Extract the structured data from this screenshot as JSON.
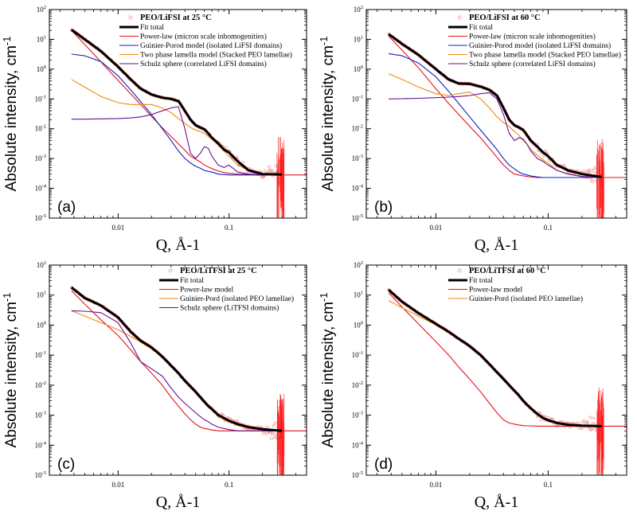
{
  "chart_data": [
    {
      "type": "line",
      "panel_label": "(a)",
      "legend_title": "PEO/LiFSI at 25 °C",
      "xlabel": "Q, Å-1",
      "ylabel": "Absolute intensity, cm-1",
      "xscale": "log",
      "yscale": "log",
      "xlim": [
        0.0024,
        0.5
      ],
      "ylim": [
        1e-05,
        100
      ],
      "xticks": [
        "0.01",
        "0.1"
      ],
      "yticks": [
        "10^2",
        "10^1",
        "10^0",
        "10^-1",
        "10^-2",
        "10^-3",
        "10^-4",
        "10^-5"
      ],
      "legend_position": "top-right",
      "x": [
        0.0038,
        0.005,
        0.007,
        0.01,
        0.013,
        0.016,
        0.02,
        0.025,
        0.03,
        0.035,
        0.04,
        0.045,
        0.05,
        0.055,
        0.06,
        0.065,
        0.07,
        0.08,
        0.09,
        0.1,
        0.12,
        0.15,
        0.2,
        0.3
      ],
      "series": [
        {
          "name": "Fit total",
          "color": "#000000",
          "values": [
            21,
            10,
            4,
            1.2,
            0.45,
            0.22,
            0.14,
            0.11,
            0.1,
            0.085,
            0.04,
            0.02,
            0.013,
            0.011,
            0.0095,
            0.007,
            0.005,
            0.0032,
            0.002,
            0.0016,
            0.0008,
            0.0004,
            0.0003,
            0.00029
          ]
        },
        {
          "name": "Power-law (micron scale inhomogenities)",
          "color": "#e8101a",
          "values": [
            20,
            6.7,
            1.75,
            0.42,
            0.147,
            0.064,
            0.026,
            0.0108,
            0.0055,
            0.0031,
            0.0019,
            0.0012,
            0.00095,
            0.00077,
            0.00061,
            0.00052,
            0.00046,
            0.00038,
            0.00034,
            0.00032,
            0.0003,
            0.00029,
            0.00028,
            0.00028
          ]
        },
        {
          "name": "Guinier-Porod model (isolated LiFSI domains)",
          "color": "#1020c0",
          "values": [
            3.2,
            2.8,
            1.8,
            0.6,
            0.2,
            0.08,
            0.03,
            0.01,
            0.004,
            0.0018,
            0.001,
            0.0007,
            0.00055,
            0.00047,
            0.0004,
            0.00037,
            0.00035,
            0.0003,
            0.00029,
            0.00028,
            0.00028,
            0.00028,
            0.00028,
            0.00028
          ]
        },
        {
          "name": "Two phase lamella model (Stacked PEO lamellae)",
          "color": "#f08a10",
          "values": [
            0.45,
            0.25,
            0.12,
            0.075,
            0.065,
            0.065,
            0.065,
            0.05,
            0.035,
            0.022,
            0.015,
            0.011,
            0.009,
            0.008,
            0.007,
            0.0055,
            0.0045,
            0.0028,
            0.0018,
            0.0012,
            0.0006,
            0.0004,
            0.0003,
            0.00028
          ]
        },
        {
          "name": "Schulz sphere (correlated LiFSI domains)",
          "color": "#6a1090",
          "values": [
            0.021,
            0.021,
            0.0215,
            0.022,
            0.023,
            0.025,
            0.03,
            0.04,
            0.05,
            0.055,
            0.01,
            0.0015,
            0.001,
            0.0015,
            0.0025,
            0.0022,
            0.0012,
            0.0006,
            0.0005,
            0.0006,
            0.00035,
            0.0003,
            0.00028,
            0.00028
          ]
        }
      ]
    },
    {
      "type": "line",
      "panel_label": "(b)",
      "legend_title": "PEO/LiFSI at 60 °C",
      "xlabel": "Q, Å-1",
      "ylabel": "Absolute intensity, cm-1",
      "xscale": "log",
      "yscale": "log",
      "xlim": [
        0.0024,
        0.5
      ],
      "ylim": [
        1e-05,
        100
      ],
      "xticks": [
        "0.01",
        "0.1"
      ],
      "yticks": [
        "10^2",
        "10^1",
        "10^0",
        "10^-1",
        "10^-2",
        "10^-3",
        "10^-4",
        "10^-5"
      ],
      "legend_position": "top-right",
      "x": [
        0.0038,
        0.005,
        0.007,
        0.01,
        0.013,
        0.016,
        0.02,
        0.025,
        0.03,
        0.035,
        0.04,
        0.045,
        0.05,
        0.055,
        0.06,
        0.065,
        0.07,
        0.08,
        0.09,
        0.1,
        0.12,
        0.15,
        0.2,
        0.3
      ],
      "series": [
        {
          "name": "Fit total",
          "color": "#000000",
          "values": [
            15,
            7,
            3,
            1,
            0.45,
            0.33,
            0.32,
            0.26,
            0.2,
            0.13,
            0.05,
            0.02,
            0.013,
            0.011,
            0.009,
            0.006,
            0.004,
            0.0025,
            0.0016,
            0.0012,
            0.0006,
            0.0004,
            0.0003,
            0.00024
          ]
        },
        {
          "name": "Power-law (micron scale inhomogenities)",
          "color": "#e8101a",
          "values": [
            13,
            4.3,
            1.1,
            0.22,
            0.07,
            0.03,
            0.012,
            0.005,
            0.0022,
            0.0011,
            0.0006,
            0.0004,
            0.0003,
            0.00028,
            0.00026,
            0.00025,
            0.00024,
            0.00023,
            0.00023,
            0.00023,
            0.00023,
            0.00023,
            0.00023,
            0.00023
          ]
        },
        {
          "name": "Guinier-Porod model (isolated LiFSI domains)",
          "color": "#1020c0",
          "values": [
            3.3,
            2.8,
            1.6,
            0.55,
            0.18,
            0.07,
            0.025,
            0.009,
            0.004,
            0.002,
            0.001,
            0.0006,
            0.00045,
            0.00035,
            0.0003,
            0.00028,
            0.00026,
            0.00024,
            0.00023,
            0.00023,
            0.00023,
            0.00023,
            0.00023,
            0.00023
          ]
        },
        {
          "name": "Two phase lamella model (Stacked PEO lamellae)",
          "color": "#f08a10",
          "values": [
            0.7,
            0.45,
            0.25,
            0.15,
            0.13,
            0.15,
            0.17,
            0.1,
            0.05,
            0.025,
            0.016,
            0.012,
            0.008,
            0.006,
            0.004,
            0.003,
            0.002,
            0.0013,
            0.0009,
            0.0007,
            0.0004,
            0.0003,
            0.00025,
            0.00023
          ]
        },
        {
          "name": "Schulz sphere (correlated LiFSI domains)",
          "color": "#6a1090",
          "values": [
            0.1,
            0.102,
            0.105,
            0.11,
            0.115,
            0.12,
            0.13,
            0.15,
            0.16,
            0.1,
            0.03,
            0.007,
            0.004,
            0.005,
            0.0045,
            0.003,
            0.0018,
            0.001,
            0.0008,
            0.0006,
            0.0004,
            0.0003,
            0.00025,
            0.00023
          ]
        }
      ]
    },
    {
      "type": "line",
      "panel_label": "(c)",
      "legend_title": "PEO/LiTFSI at 25 °C",
      "xlabel": "Q, Å-1",
      "ylabel": "Absolute intensity, cm-1",
      "xscale": "log",
      "yscale": "log",
      "xlim": [
        0.0024,
        0.5
      ],
      "ylim": [
        1e-05,
        100
      ],
      "xticks": [
        "0.01",
        "0.1"
      ],
      "yticks": [
        "10^2",
        "10^1",
        "10^0",
        "10^-1",
        "10^-2",
        "10^-3",
        "10^-4",
        "10^-5"
      ],
      "legend_position": "top-right",
      "x": [
        0.0038,
        0.005,
        0.007,
        0.01,
        0.013,
        0.016,
        0.02,
        0.025,
        0.03,
        0.035,
        0.04,
        0.045,
        0.05,
        0.055,
        0.06,
        0.065,
        0.07,
        0.08,
        0.09,
        0.1,
        0.12,
        0.15,
        0.2,
        0.3
      ],
      "series": [
        {
          "name": "Fit total",
          "color": "#000000",
          "values": [
            18,
            8,
            4.5,
            1.8,
            0.6,
            0.3,
            0.18,
            0.09,
            0.045,
            0.025,
            0.014,
            0.009,
            0.006,
            0.004,
            0.0028,
            0.002,
            0.0016,
            0.001,
            0.0008,
            0.00065,
            0.0005,
            0.0004,
            0.00034,
            0.0003
          ]
        },
        {
          "name": "Power-law model",
          "color": "#e8101a",
          "values": [
            14,
            5,
            1.5,
            0.45,
            0.15,
            0.06,
            0.025,
            0.01,
            0.004,
            0.002,
            0.0011,
            0.0007,
            0.0005,
            0.0004,
            0.00036,
            0.00034,
            0.00032,
            0.0003,
            0.0003,
            0.0003,
            0.0003,
            0.0003,
            0.0003,
            0.0003
          ]
        },
        {
          "name": "Guinier-Pord (isolated PEO lamellae)",
          "color": "#f08a10",
          "values": [
            3,
            2,
            1.2,
            0.7,
            0.42,
            0.27,
            0.16,
            0.09,
            0.045,
            0.025,
            0.014,
            0.009,
            0.006,
            0.004,
            0.0027,
            0.002,
            0.0015,
            0.001,
            0.0007,
            0.0006,
            0.00045,
            0.00037,
            0.00032,
            0.0003
          ]
        },
        {
          "name": "Schulz sphere (LiTFSI domains)",
          "color": "#6a1090",
          "values": [
            3,
            2.9,
            2.6,
            1.2,
            0.25,
            0.06,
            0.035,
            0.02,
            0.008,
            0.004,
            0.0025,
            0.0017,
            0.0012,
            0.0009,
            0.0007,
            0.0006,
            0.0005,
            0.0004,
            0.00036,
            0.00033,
            0.0003,
            0.0003,
            0.0003,
            0.0003
          ]
        }
      ]
    },
    {
      "type": "line",
      "panel_label": "(d)",
      "legend_title": "PEO/LiTFSI at 60 °C",
      "xlabel": "Q, Å-1",
      "ylabel": "Absolute intensity, cm-1",
      "xscale": "log",
      "yscale": "log",
      "xlim": [
        0.0024,
        0.5
      ],
      "ylim": [
        1e-05,
        100
      ],
      "xticks": [
        "0.01",
        "0.1"
      ],
      "yticks": [
        "10^2",
        "10^1",
        "10^0",
        "10^-1",
        "10^-2",
        "10^-3",
        "10^-4",
        "10^-5"
      ],
      "legend_position": "top-right",
      "x": [
        0.0038,
        0.005,
        0.007,
        0.01,
        0.013,
        0.016,
        0.02,
        0.025,
        0.03,
        0.035,
        0.04,
        0.045,
        0.05,
        0.055,
        0.06,
        0.065,
        0.07,
        0.08,
        0.09,
        0.1,
        0.12,
        0.15,
        0.2,
        0.3
      ],
      "series": [
        {
          "name": "Fit total",
          "color": "#000000",
          "values": [
            15,
            6,
            2.5,
            1.1,
            0.6,
            0.35,
            0.2,
            0.1,
            0.05,
            0.027,
            0.016,
            0.01,
            0.0065,
            0.0045,
            0.003,
            0.0022,
            0.0017,
            0.0011,
            0.0008,
            0.00068,
            0.00055,
            0.00048,
            0.00045,
            0.00043
          ]
        },
        {
          "name": "Power-law model",
          "color": "#e8101a",
          "values": [
            12,
            4,
            1.1,
            0.28,
            0.1,
            0.04,
            0.016,
            0.006,
            0.0025,
            0.0012,
            0.0007,
            0.00055,
            0.0005,
            0.00047,
            0.00045,
            0.00044,
            0.00044,
            0.00043,
            0.00043,
            0.00043,
            0.00043,
            0.00043,
            0.00043,
            0.00043
          ]
        },
        {
          "name": "Guinier-Pord (isolated PEO lamellae)",
          "color": "#f08a10",
          "values": [
            6.5,
            3.8,
            2,
            1,
            0.58,
            0.35,
            0.2,
            0.1,
            0.05,
            0.027,
            0.016,
            0.01,
            0.0065,
            0.0045,
            0.003,
            0.0022,
            0.0017,
            0.0011,
            0.0008,
            0.00068,
            0.00055,
            0.00048,
            0.00045,
            0.00043
          ]
        }
      ]
    }
  ]
}
